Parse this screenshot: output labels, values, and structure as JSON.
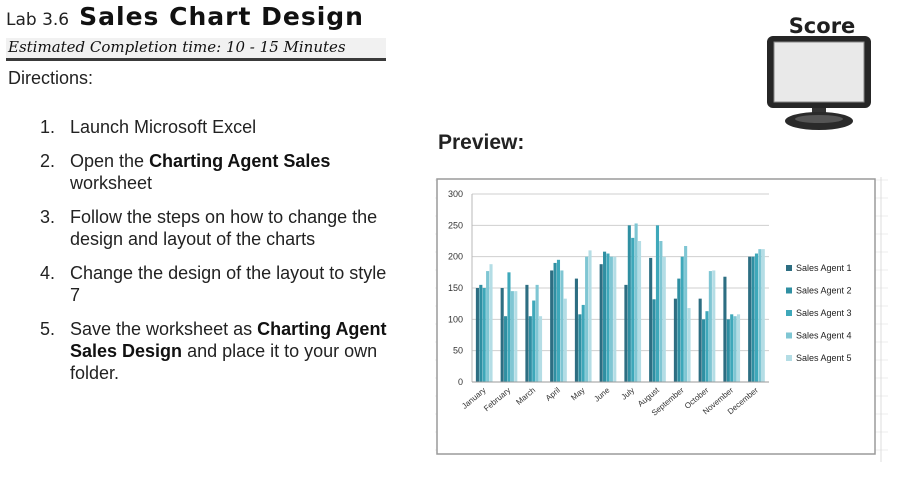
{
  "header": {
    "lab_number": "Lab 3.6",
    "lab_title": "Sales Chart Design",
    "estimated_time": "Estimated Completion time: 10 - 15 Minutes"
  },
  "directions_label": "Directions:",
  "steps": [
    {
      "num": "1.",
      "parts": [
        "Launch Microsoft Excel",
        "",
        ""
      ]
    },
    {
      "num": "2.",
      "parts": [
        "Open the ",
        "Charting Agent Sales",
        " worksheet"
      ]
    },
    {
      "num": "3.",
      "parts": [
        "Follow the steps on how to change the design and layout of the charts",
        "",
        ""
      ]
    },
    {
      "num": "4.",
      "parts": [
        "Change the design of the layout to style 7",
        "",
        ""
      ]
    },
    {
      "num": "5.",
      "parts": [
        "Save the worksheet as ",
        "Charting Agent Sales Design",
        " and place it to your own folder."
      ]
    }
  ],
  "score_label": "Score",
  "preview_label": "Preview:",
  "colors": {
    "monitor_frame": "#262626",
    "monitor_screen": "#e6e6e6",
    "chart_border": "#9a9a9a",
    "gridline": "#cfcfcf"
  },
  "chart_data": {
    "type": "bar",
    "categories": [
      "January",
      "February",
      "March",
      "April",
      "May",
      "June",
      "July",
      "August",
      "September",
      "October",
      "November",
      "December"
    ],
    "series": [
      {
        "name": "Sales Agent 1",
        "color": "#2d6e82",
        "values": [
          150,
          150,
          155,
          178,
          165,
          188,
          155,
          198,
          133,
          133,
          168,
          200
        ]
      },
      {
        "name": "Sales Agent 2",
        "color": "#2f8fa2",
        "values": [
          155,
          105,
          105,
          190,
          108,
          208,
          250,
          132,
          165,
          100,
          100,
          200
        ]
      },
      {
        "name": "Sales Agent 3",
        "color": "#3ea8ba",
        "values": [
          150,
          175,
          130,
          195,
          123,
          205,
          230,
          250,
          200,
          113,
          108,
          205
        ]
      },
      {
        "name": "Sales Agent 4",
        "color": "#7fc6d3",
        "values": [
          177,
          145,
          155,
          178,
          200,
          200,
          253,
          225,
          217,
          177,
          105,
          212
        ]
      },
      {
        "name": "Sales Agent 5",
        "color": "#b4dde5",
        "values": [
          188,
          145,
          105,
          133,
          210,
          200,
          225,
          200,
          118,
          178,
          108,
          212
        ]
      }
    ],
    "yticks": [
      "0",
      "50",
      "100",
      "150",
      "200",
      "250",
      "300"
    ],
    "ylim": [
      0,
      300
    ],
    "legend_position": "right",
    "grid": true
  }
}
